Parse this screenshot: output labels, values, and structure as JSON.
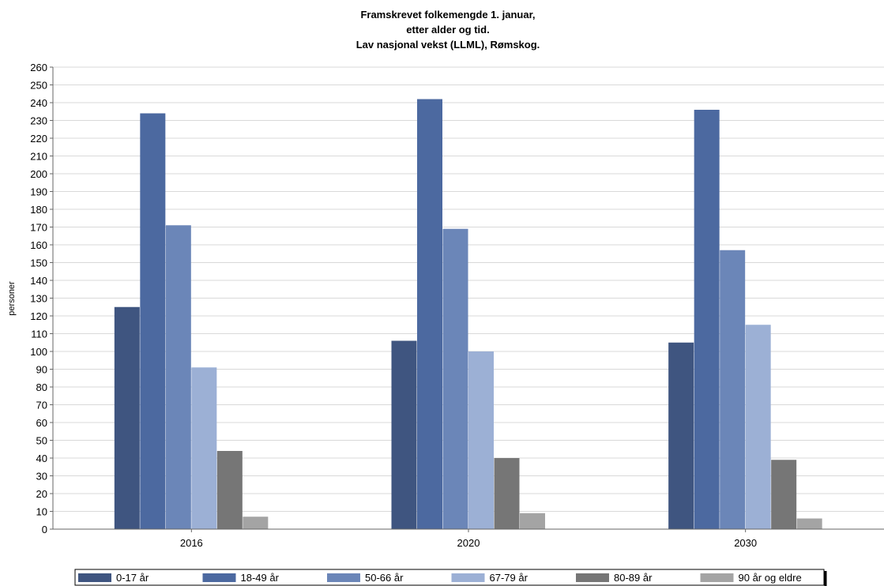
{
  "chart_data": {
    "type": "bar",
    "title": [
      "Framskrevet folkemengde 1. januar,",
      "etter alder og tid.",
      "Lav nasjonal vekst (LLML), Rømskog."
    ],
    "xlabel": "",
    "ylabel": "personer",
    "ylim": [
      0,
      260
    ],
    "yticks": [
      0,
      10,
      20,
      30,
      40,
      50,
      60,
      70,
      80,
      90,
      100,
      110,
      120,
      130,
      140,
      150,
      160,
      170,
      180,
      190,
      200,
      210,
      220,
      230,
      240,
      250,
      260
    ],
    "grid": true,
    "legend": "bottom",
    "categories": [
      "2016",
      "2020",
      "2030"
    ],
    "series": [
      {
        "name": "0-17 år",
        "color": "#3f5580",
        "values": [
          125,
          106,
          105
        ]
      },
      {
        "name": "18-49 år",
        "color": "#4c69a0",
        "values": [
          234,
          242,
          236
        ]
      },
      {
        "name": "50-66 år",
        "color": "#6b86b8",
        "values": [
          171,
          169,
          157
        ]
      },
      {
        "name": "67-79 år",
        "color": "#9cb0d5",
        "values": [
          91,
          100,
          115
        ]
      },
      {
        "name": "80-89 år",
        "color": "#767676",
        "values": [
          44,
          40,
          39
        ]
      },
      {
        "name": "90 år og eldre",
        "color": "#a4a4a4",
        "values": [
          7,
          9,
          6
        ]
      }
    ]
  }
}
